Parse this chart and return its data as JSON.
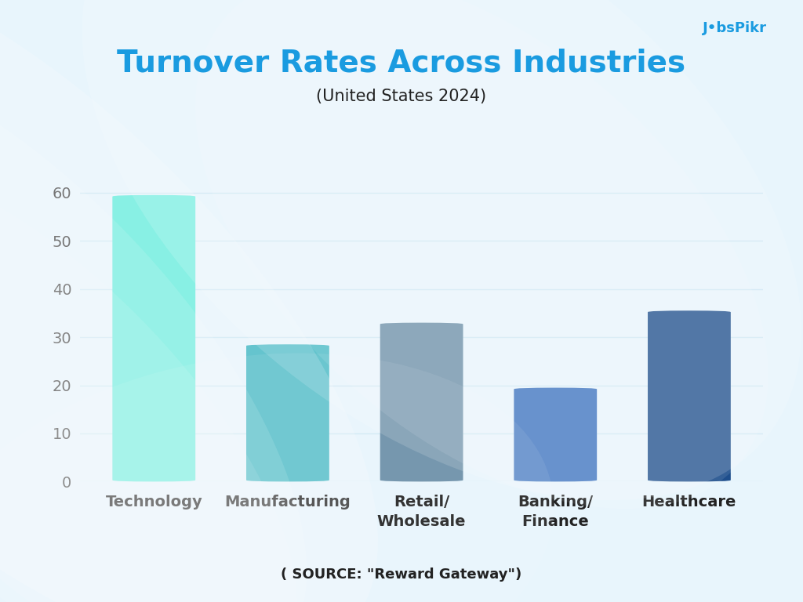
{
  "title": "Turnover Rates Across Industries",
  "subtitle": "(United States 2024)",
  "source": "( SOURCE: \"Reward Gateway\")",
  "categories": [
    "Technology",
    "Manufacturing",
    "Retail/\nWholesale",
    "Banking/\nFinance",
    "Healthcare"
  ],
  "values": [
    59.5,
    28.5,
    33.0,
    19.5,
    35.5
  ],
  "bar_colors": [
    "#6EEDDF",
    "#44B8C4",
    "#6B8FA8",
    "#3A72BF",
    "#1E4E8C"
  ],
  "ylim": [
    0,
    65
  ],
  "yticks": [
    0,
    10,
    20,
    30,
    40,
    50,
    60
  ],
  "bg_color": "#E8F5FC",
  "title_color": "#1A9BE0",
  "subtitle_color": "#222222",
  "grid_color": "#D0E8F5",
  "logo_color": "#1A9BE0",
  "bar_width": 0.62,
  "title_fontsize": 28,
  "subtitle_fontsize": 15,
  "source_fontsize": 13,
  "tick_fontsize": 14,
  "xlabel_fontsize": 14
}
